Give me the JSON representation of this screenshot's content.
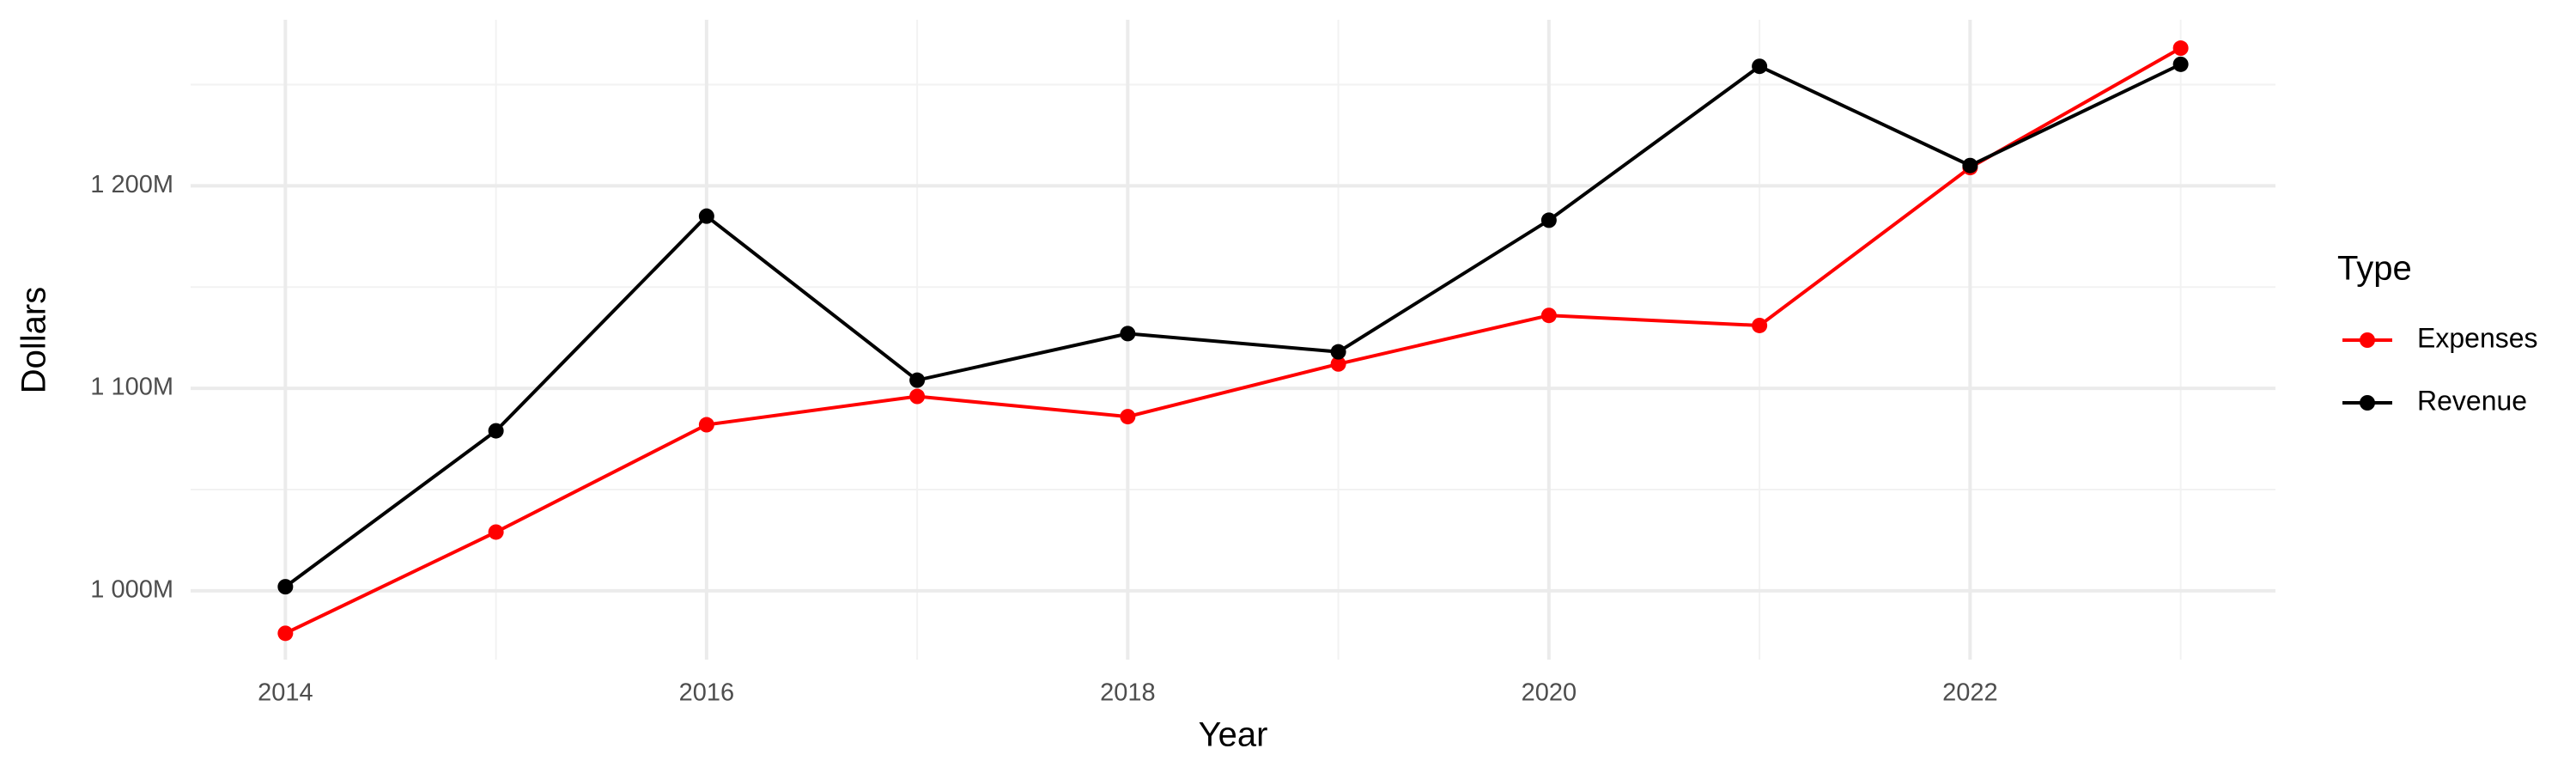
{
  "chart_data": {
    "type": "line",
    "x_label": "Year",
    "y_label": "Dollars",
    "legend_title": "Type",
    "x": [
      2014,
      2015,
      2016,
      2017,
      2018,
      2019,
      2020,
      2021,
      2022,
      2023
    ],
    "series": [
      {
        "name": "Expenses",
        "color": "#ff0000",
        "values": [
          979000000,
          1029000000,
          1082000000,
          1096000000,
          1086000000,
          1112000000,
          1136000000,
          1131000000,
          1209000000,
          1268000000
        ]
      },
      {
        "name": "Revenue",
        "color": "#000000",
        "values": [
          1002000000,
          1079000000,
          1185000000,
          1104000000,
          1127000000,
          1118000000,
          1183000000,
          1259000000,
          1210000000,
          1260000000
        ]
      }
    ],
    "xlim": [
      2013.55,
      2023.45
    ],
    "xticks": [
      2014,
      2016,
      2018,
      2020,
      2022
    ],
    "ylim": [
      966000000,
      1282000000
    ],
    "yticks": [
      {
        "value": 1000000000,
        "label": "1 000M"
      },
      {
        "value": 1100000000,
        "label": "1 100M"
      },
      {
        "value": 1200000000,
        "label": "1 200M"
      }
    ],
    "grid": true,
    "minor_grid": true,
    "legend": "right"
  }
}
